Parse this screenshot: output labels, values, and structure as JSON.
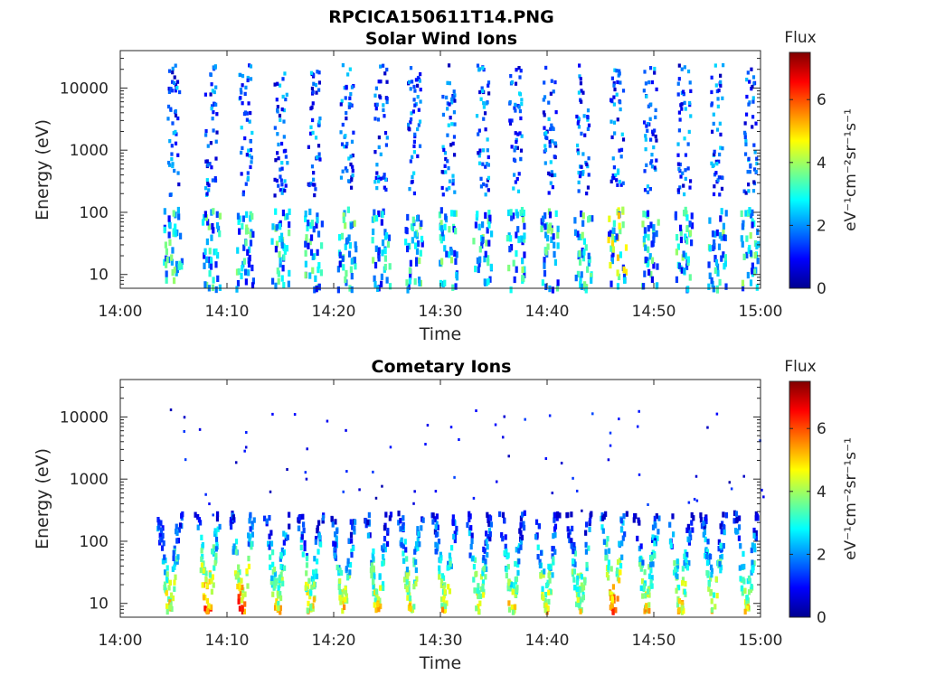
{
  "figure": {
    "title": "RPCICA150611T14.PNG"
  },
  "chart_data": [
    {
      "type": "heatmap",
      "title": "Solar Wind Ions",
      "xlabel": "Time",
      "ylabel": "Energy (eV)",
      "x_ticks": [
        "14:00",
        "14:10",
        "14:20",
        "14:30",
        "14:40",
        "14:50",
        "15:00"
      ],
      "xlim_minutes": [
        0,
        60
      ],
      "y_scale": "log",
      "y_ticks": [
        "10",
        "100",
        "1000",
        "10000"
      ],
      "ylim": [
        6,
        40000
      ],
      "colorbar": {
        "title": "Flux",
        "label": "eV⁻¹cm⁻²sr⁻¹s⁻¹",
        "ticks": [
          "0",
          "2",
          "4",
          "6"
        ],
        "range": [
          0,
          7.5
        ],
        "colormap": "jet"
      },
      "sweep_start_minutes": [
        4.5,
        8.1,
        11.3,
        14.6,
        17.7,
        20.8,
        24.0,
        27.1,
        30.3,
        33.5,
        36.6,
        39.8,
        42.9,
        46.1,
        49.2,
        52.4,
        55.5,
        58.6
      ],
      "pattern": "vertical energy sweeps every ~3.2 min; sparse low flux (0.5-2.5) across 200-30000 eV, higher flux (2-5) below ~100 eV"
    },
    {
      "type": "heatmap",
      "title": "Cometary Ions",
      "xlabel": "Time",
      "ylabel": "Energy (eV)",
      "x_ticks": [
        "14:00",
        "14:10",
        "14:20",
        "14:30",
        "14:40",
        "14:50",
        "15:00"
      ],
      "xlim_minutes": [
        0,
        60
      ],
      "y_scale": "log",
      "y_ticks": [
        "10",
        "100",
        "1000",
        "10000"
      ],
      "ylim": [
        6,
        40000
      ],
      "colorbar": {
        "title": "Flux",
        "label": "eV⁻¹cm⁻²sr⁻¹s⁻¹",
        "ticks": [
          "0",
          "2",
          "4",
          "6"
        ],
        "range": [
          0,
          7.5
        ],
        "colormap": "jet"
      },
      "sweep_start_minutes": [
        4.5,
        8.1,
        11.3,
        14.6,
        17.7,
        20.8,
        24.0,
        27.1,
        30.3,
        33.5,
        36.6,
        39.8,
        42.9,
        46.1,
        49.2,
        52.4,
        55.5,
        58.6
      ],
      "pattern": "V-shaped high-flux (4-7) bands between 8 and 300 eV per sweep; sparse low-flux points up to ~15000 eV"
    }
  ]
}
